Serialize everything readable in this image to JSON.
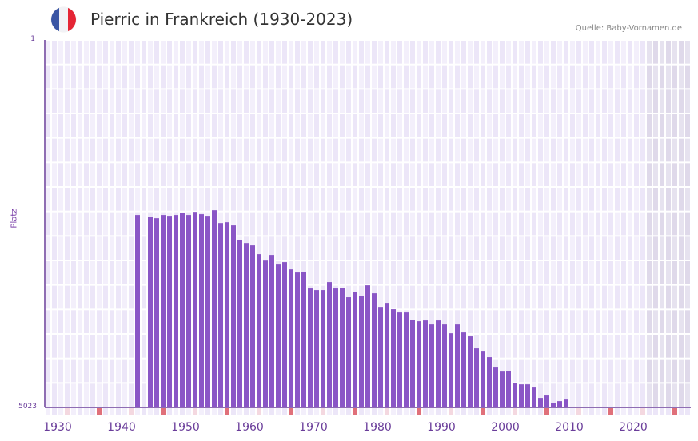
{
  "header": {
    "title": "Pierric in Frankreich (1930-2023)",
    "source": "Quelle: Baby-Vornamen.de",
    "flag_colors": [
      "#3a55a4",
      "#f2f2f6",
      "#e52535"
    ]
  },
  "colors": {
    "bar": "#8a56c6",
    "axis": "#6a3d9a",
    "cell_a": "#f3effb",
    "cell_b": "#ece6f8",
    "future_a": "#e6e2ef",
    "future_b": "#dfd9ea",
    "decade_marker": "#e0707a",
    "half_decade_marker": "#f4d8e0"
  },
  "chart_data": {
    "type": "bar",
    "title": "Pierric in Frankreich (1930-2023)",
    "xlabel": "",
    "ylabel": "Platz",
    "y_inverted": true,
    "ylim": [
      1,
      5023
    ],
    "xlim": [
      1930,
      2030
    ],
    "ytick_labels": [
      "1",
      "5023"
    ],
    "xtick_labels": [
      "1930",
      "1940",
      "1950",
      "1960",
      "1970",
      "1980",
      "1990",
      "2000",
      "2010",
      "2020"
    ],
    "grid": true,
    "legend": null,
    "x": [
      1944,
      1946,
      1947,
      1948,
      1949,
      1950,
      1951,
      1952,
      1953,
      1954,
      1955,
      1956,
      1957,
      1958,
      1959,
      1960,
      1961,
      1962,
      1963,
      1964,
      1965,
      1966,
      1967,
      1968,
      1969,
      1970,
      1971,
      1972,
      1973,
      1974,
      1975,
      1976,
      1977,
      1978,
      1979,
      1980,
      1981,
      1982,
      1983,
      1984,
      1985,
      1986,
      1987,
      1988,
      1989,
      1990,
      1991,
      1992,
      1993,
      1994,
      1995,
      1996,
      1997,
      1998,
      1999,
      2000,
      2001,
      2002,
      2003,
      2004,
      2005,
      2006,
      2007,
      2008,
      2009,
      2010,
      2011
    ],
    "values": [
      2393,
      2415,
      2437,
      2393,
      2404,
      2393,
      2361,
      2393,
      2350,
      2382,
      2404,
      2328,
      2503,
      2492,
      2535,
      2732,
      2776,
      2808,
      2928,
      3016,
      2939,
      3070,
      3037,
      3136,
      3179,
      3168,
      3397,
      3419,
      3419,
      3310,
      3397,
      3386,
      3517,
      3441,
      3495,
      3354,
      3463,
      3649,
      3594,
      3681,
      3725,
      3725,
      3823,
      3845,
      3834,
      3889,
      3834,
      3889,
      4009,
      3889,
      3998,
      4052,
      4216,
      4249,
      4336,
      4467,
      4533,
      4522,
      4686,
      4708,
      4708,
      4751,
      4893,
      4860,
      4959,
      4937,
      4915
    ]
  }
}
